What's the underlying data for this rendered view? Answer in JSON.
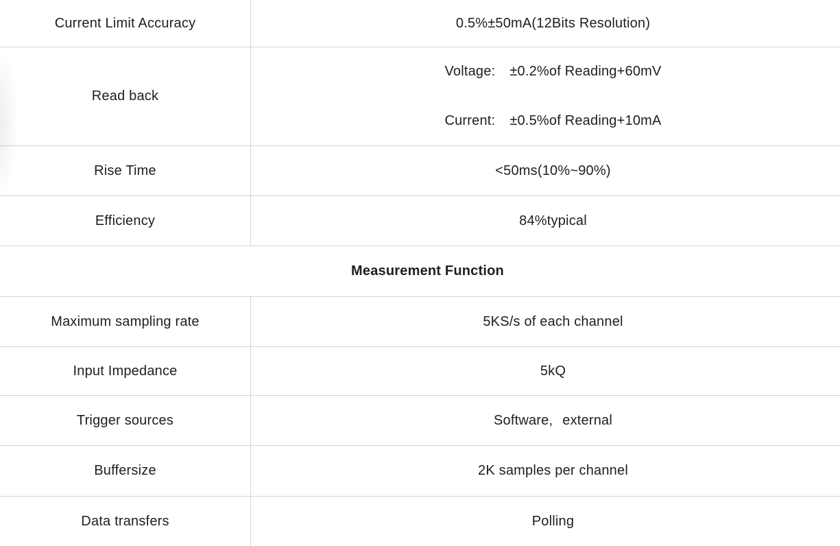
{
  "table": {
    "section_header": "Measurement Function",
    "rows_top": [
      {
        "label": "Current Limit Accuracy",
        "value": "0.5%±50mA(12Bits Resolution)"
      },
      {
        "label": "Read back",
        "lines": [
          {
            "prefix": "Voltage:",
            "text": "±0.2%of Reading+60mV"
          },
          {
            "prefix": "Current:",
            "text": "±0.5%of Reading+10mA"
          }
        ]
      },
      {
        "label": "Rise Time",
        "value": "<50ms(10%~90%)"
      },
      {
        "label": "Efficiency",
        "value": "84%typical"
      }
    ],
    "rows_bottom": [
      {
        "label": "Maximum sampling rate",
        "value": "5KS/s of each channel"
      },
      {
        "label": "Input Impedance",
        "value": "5kQ"
      },
      {
        "label": "Trigger sources",
        "parts": {
          "first": "Software,",
          "second": "external"
        }
      },
      {
        "label": "Buffersize",
        "value": "2K samples per channel"
      },
      {
        "label": "Data transfers",
        "value": "Polling"
      }
    ]
  }
}
